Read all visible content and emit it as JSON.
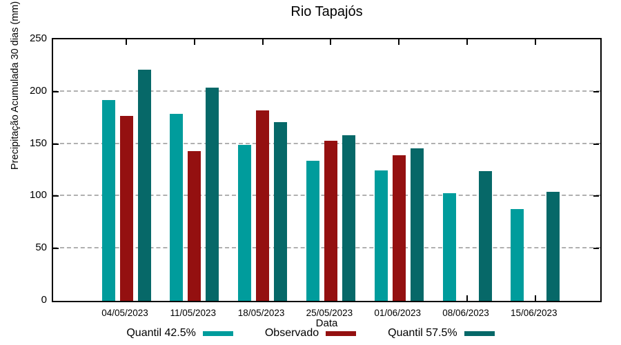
{
  "title": "Rio Tapajós",
  "chart_data": {
    "type": "bar",
    "title": "Rio Tapajós",
    "xlabel": "Data",
    "ylabel": "Precipitação Acumulada 30 dias (mm)",
    "ylim": [
      0,
      250
    ],
    "y_ticks": [
      0,
      50,
      100,
      150,
      200,
      250
    ],
    "grid": "horizontal-dashed",
    "legend_position": "bottom-center",
    "categories": [
      "04/05/2023",
      "11/05/2023",
      "18/05/2023",
      "25/05/2023",
      "01/06/2023",
      "08/06/2023",
      "15/06/2023"
    ],
    "series": [
      {
        "name": "Quantil 42.5%",
        "color": "#009C9C",
        "values": [
          192,
          179,
          149,
          134,
          125,
          103,
          88
        ]
      },
      {
        "name": "Observado",
        "color": "#941010",
        "values": [
          177,
          143,
          182,
          153,
          139,
          null,
          null
        ]
      },
      {
        "name": "Quantil 57.5%",
        "color": "#066868",
        "values": [
          221,
          204,
          171,
          158,
          146,
          124,
          104
        ]
      }
    ]
  }
}
